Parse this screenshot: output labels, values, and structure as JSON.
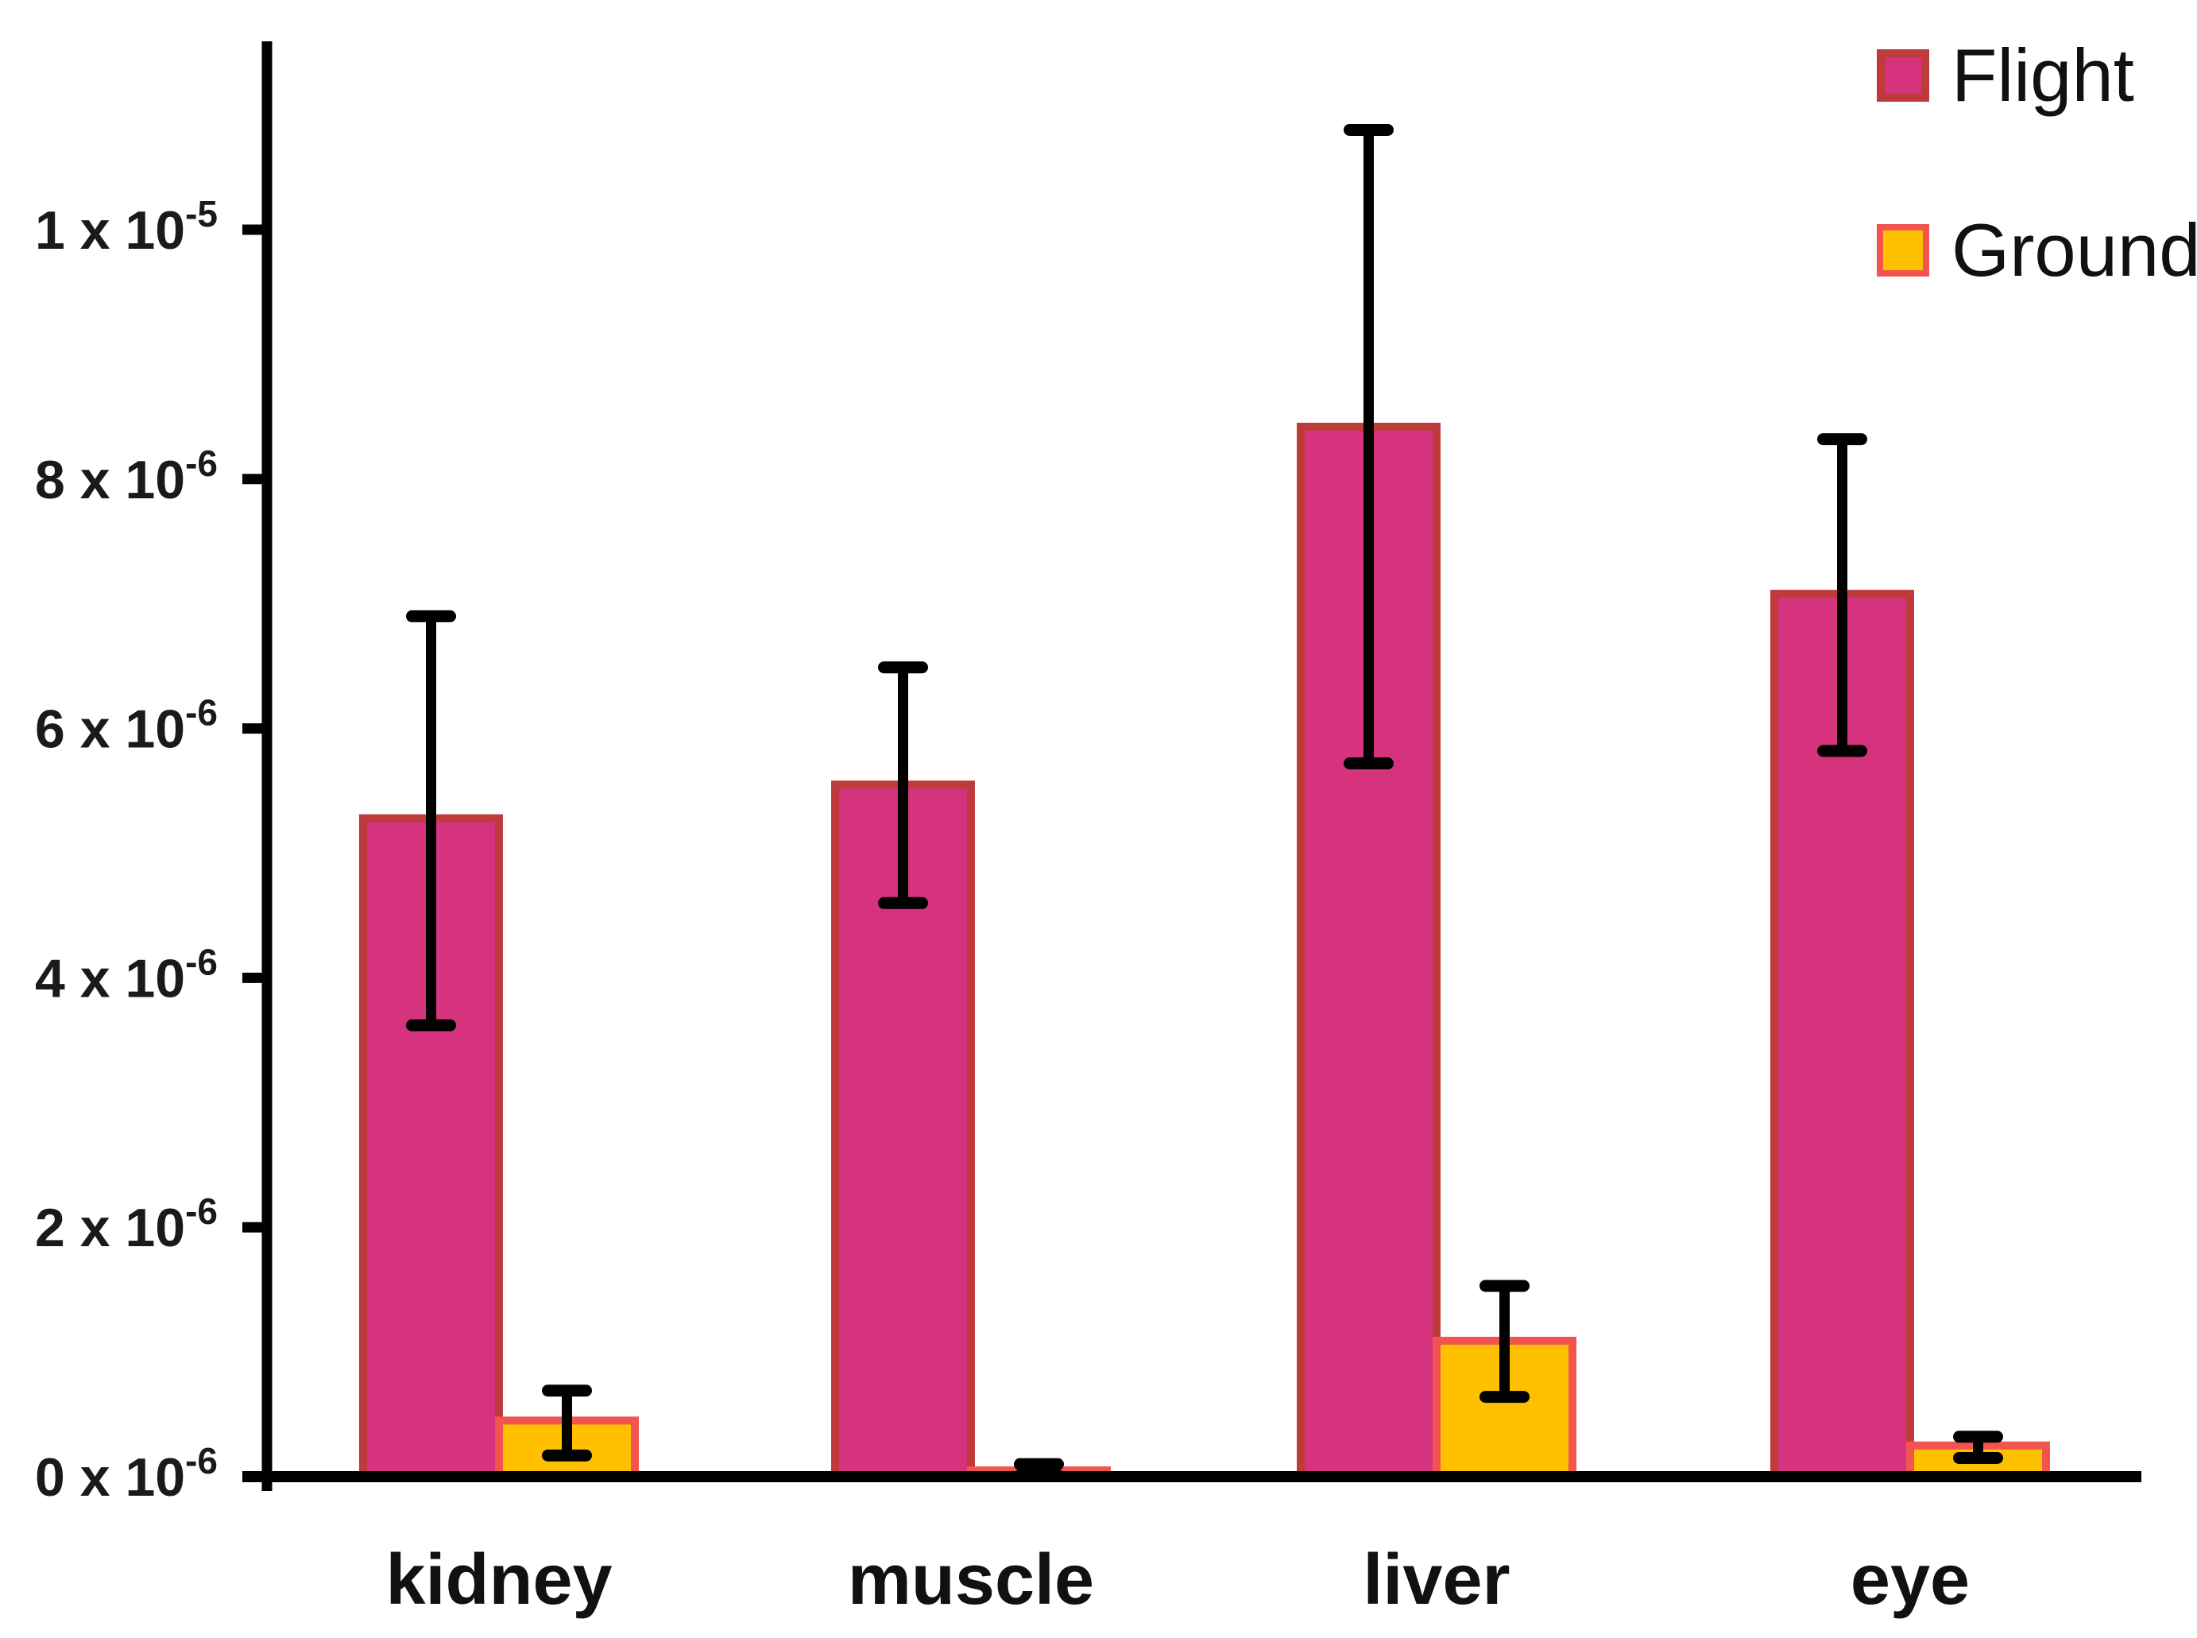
{
  "chart_data": {
    "type": "bar",
    "title": "",
    "xlabel": "",
    "ylabel": "",
    "units_note": "all bar and error values are in units of 1e-6 (multiply listed numbers by 10^-6)",
    "categories": [
      "kidney",
      "muscle",
      "liver",
      "eye"
    ],
    "series": [
      {
        "name": "Flight",
        "fill_color": "#D5337E",
        "border_color": "#BE3A3B",
        "values": [
          5.28,
          5.55,
          8.42,
          7.08
        ],
        "error_low": [
          3.62,
          4.6,
          5.72,
          5.82
        ],
        "error_high": [
          6.9,
          6.49,
          10.8,
          8.32
        ]
      },
      {
        "name": "Ground",
        "fill_color": "#FFC000",
        "border_color": "#F2544F",
        "values": [
          0.45,
          0.05,
          1.09,
          0.25
        ],
        "error_low": [
          0.17,
          0.01,
          0.64,
          0.15
        ],
        "error_high": [
          0.69,
          0.1,
          1.53,
          0.32
        ]
      }
    ],
    "yticks": [
      {
        "value": 0,
        "base": "0 x 10",
        "exp": "-6"
      },
      {
        "value": 2,
        "base": "2 x 10",
        "exp": "-6"
      },
      {
        "value": 4,
        "base": "4 x 10",
        "exp": "-6"
      },
      {
        "value": 6,
        "base": "6 x 10",
        "exp": "-6"
      },
      {
        "value": 8,
        "base": "8 x 10",
        "exp": "-6"
      },
      {
        "value": 10,
        "base": "1 x 10",
        "exp": "-5"
      }
    ],
    "ylim": [
      0,
      11.4
    ],
    "grid": false,
    "legend_position": "top-right",
    "error_bar_color": "#000000",
    "axis_color": "#000000"
  }
}
